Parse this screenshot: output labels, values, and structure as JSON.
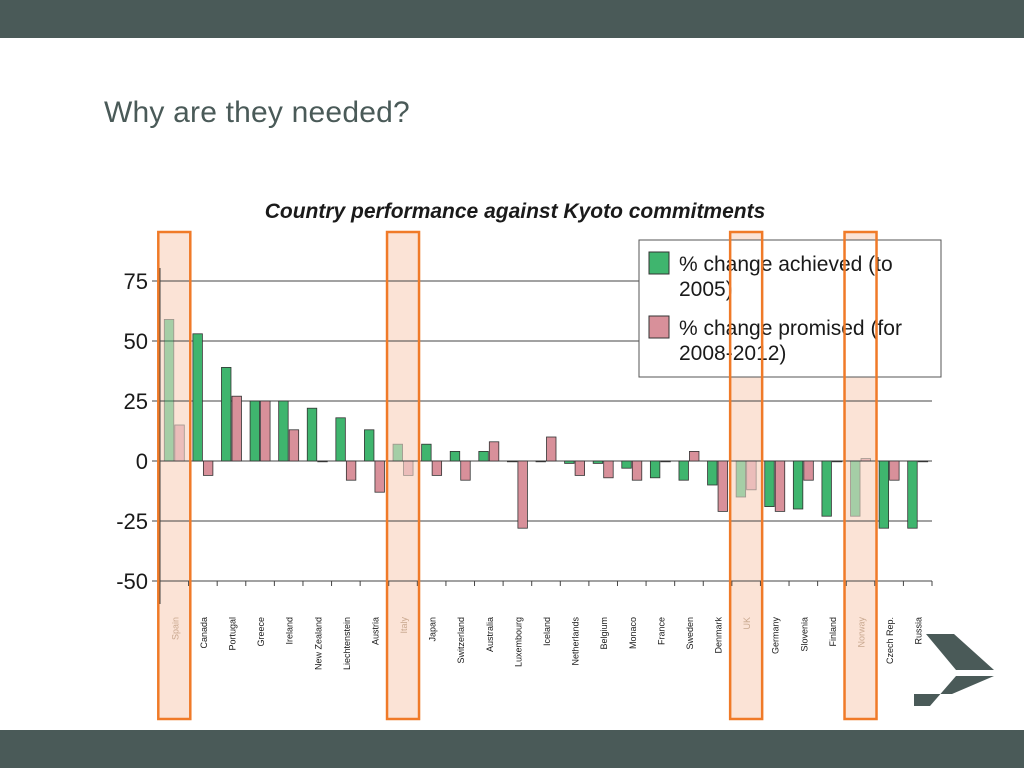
{
  "slide": {
    "title": "Why are they needed?"
  },
  "colors": {
    "bars": "#4a5a58",
    "title": "#4a5a58",
    "achieved": "#3fb56e",
    "promised": "#d8909a",
    "highlight_fill": "#fbe3d6",
    "highlight_stroke": "#f07a28"
  },
  "chart_data": {
    "type": "bar",
    "title": "Country performance against Kyoto commitments",
    "categories": [
      "Spain",
      "Canada",
      "Portugal",
      "Greece",
      "Ireland",
      "New Zealand",
      "Liechtenstein",
      "Austria",
      "Italy",
      "Japan",
      "Switzerland",
      "Australia",
      "Luxembourg",
      "Iceland",
      "Netherlands",
      "Belgium",
      "Monaco",
      "France",
      "Sweden",
      "Denmark",
      "UK",
      "Germany",
      "Slovenia",
      "Finland",
      "Norway",
      "Czech Rep.",
      "Russia"
    ],
    "series": [
      {
        "name": "% change achieved (to 2005)",
        "values": [
          59,
          53,
          39,
          25,
          25,
          22,
          18,
          13,
          7,
          7,
          4,
          4,
          0,
          0,
          -1,
          -1,
          -3,
          -7,
          -8,
          -10,
          -15,
          -19,
          -20,
          -23,
          -23,
          -28,
          -28
        ]
      },
      {
        "name": "% change promised (for 2008-2012)",
        "values": [
          15,
          -6,
          27,
          25,
          13,
          0,
          -8,
          -13,
          -6,
          -6,
          -8,
          8,
          -28,
          10,
          -6,
          -7,
          -8,
          0,
          4,
          -21,
          -12,
          -21,
          -8,
          0,
          1,
          -8,
          0
        ]
      }
    ],
    "ylim": [
      -50,
      75
    ],
    "yticks": [
      "75",
      "50",
      "25",
      "0",
      "-25",
      "-50"
    ],
    "highlighted": [
      "Spain",
      "Italy",
      "UK",
      "Norway"
    ],
    "legend_position": "top-right",
    "grid": true
  }
}
